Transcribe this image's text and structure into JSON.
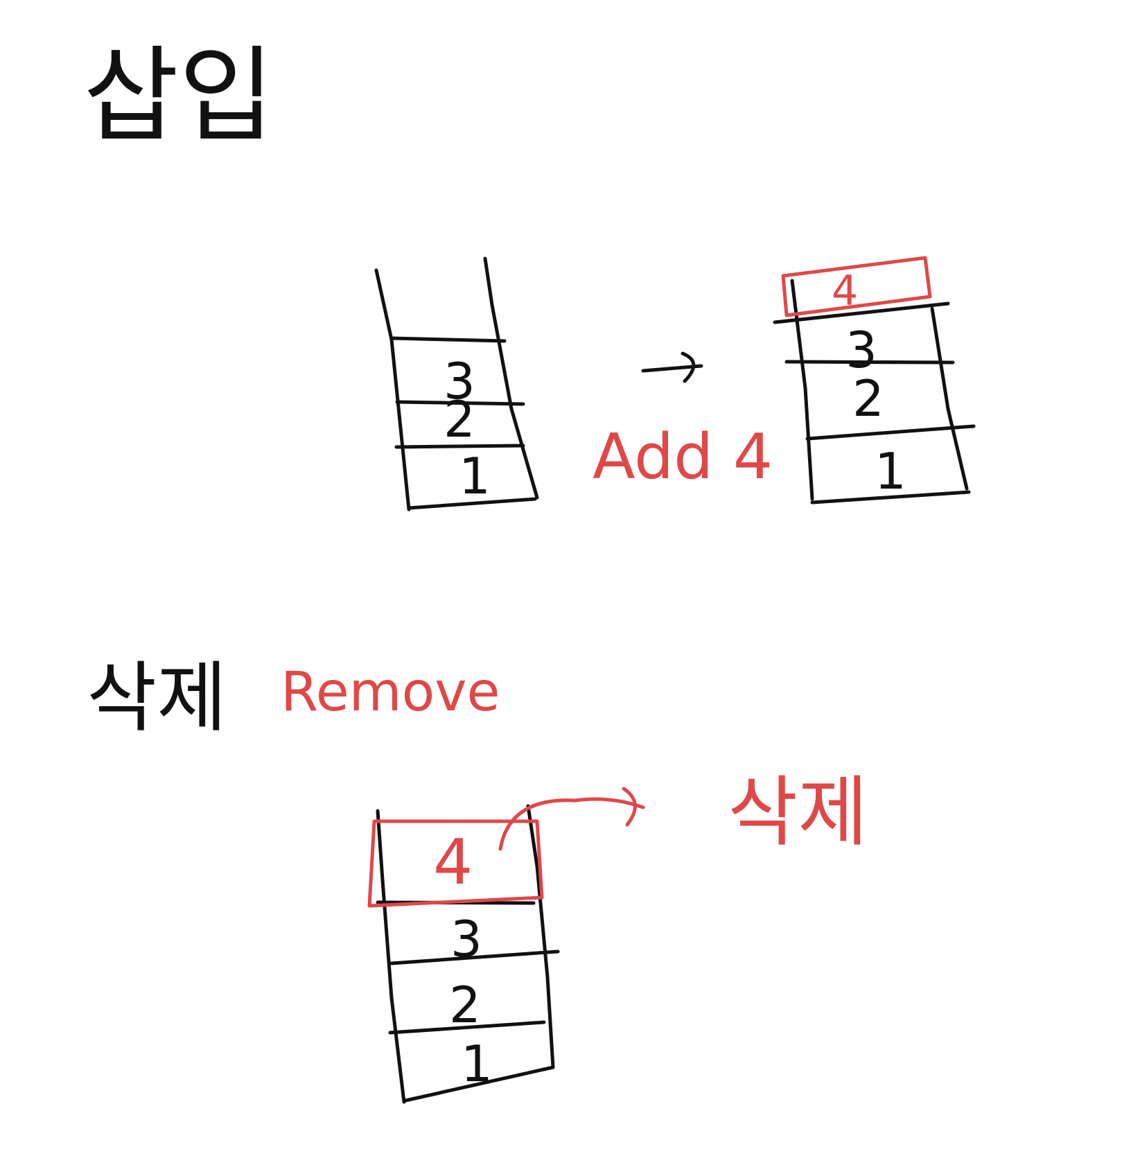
{
  "sections": {
    "insert": {
      "heading": "삽입",
      "label": "Add 4",
      "before_stack": [
        "3",
        "2",
        "1"
      ],
      "after_stack": [
        "4",
        "3",
        "2",
        "1"
      ]
    },
    "remove": {
      "heading": "삭제",
      "label": "Remove",
      "stack": [
        "4",
        "3",
        "2",
        "1"
      ],
      "result": "삭제"
    }
  },
  "colors": {
    "ink": "#111111",
    "highlight": "#e04848"
  }
}
